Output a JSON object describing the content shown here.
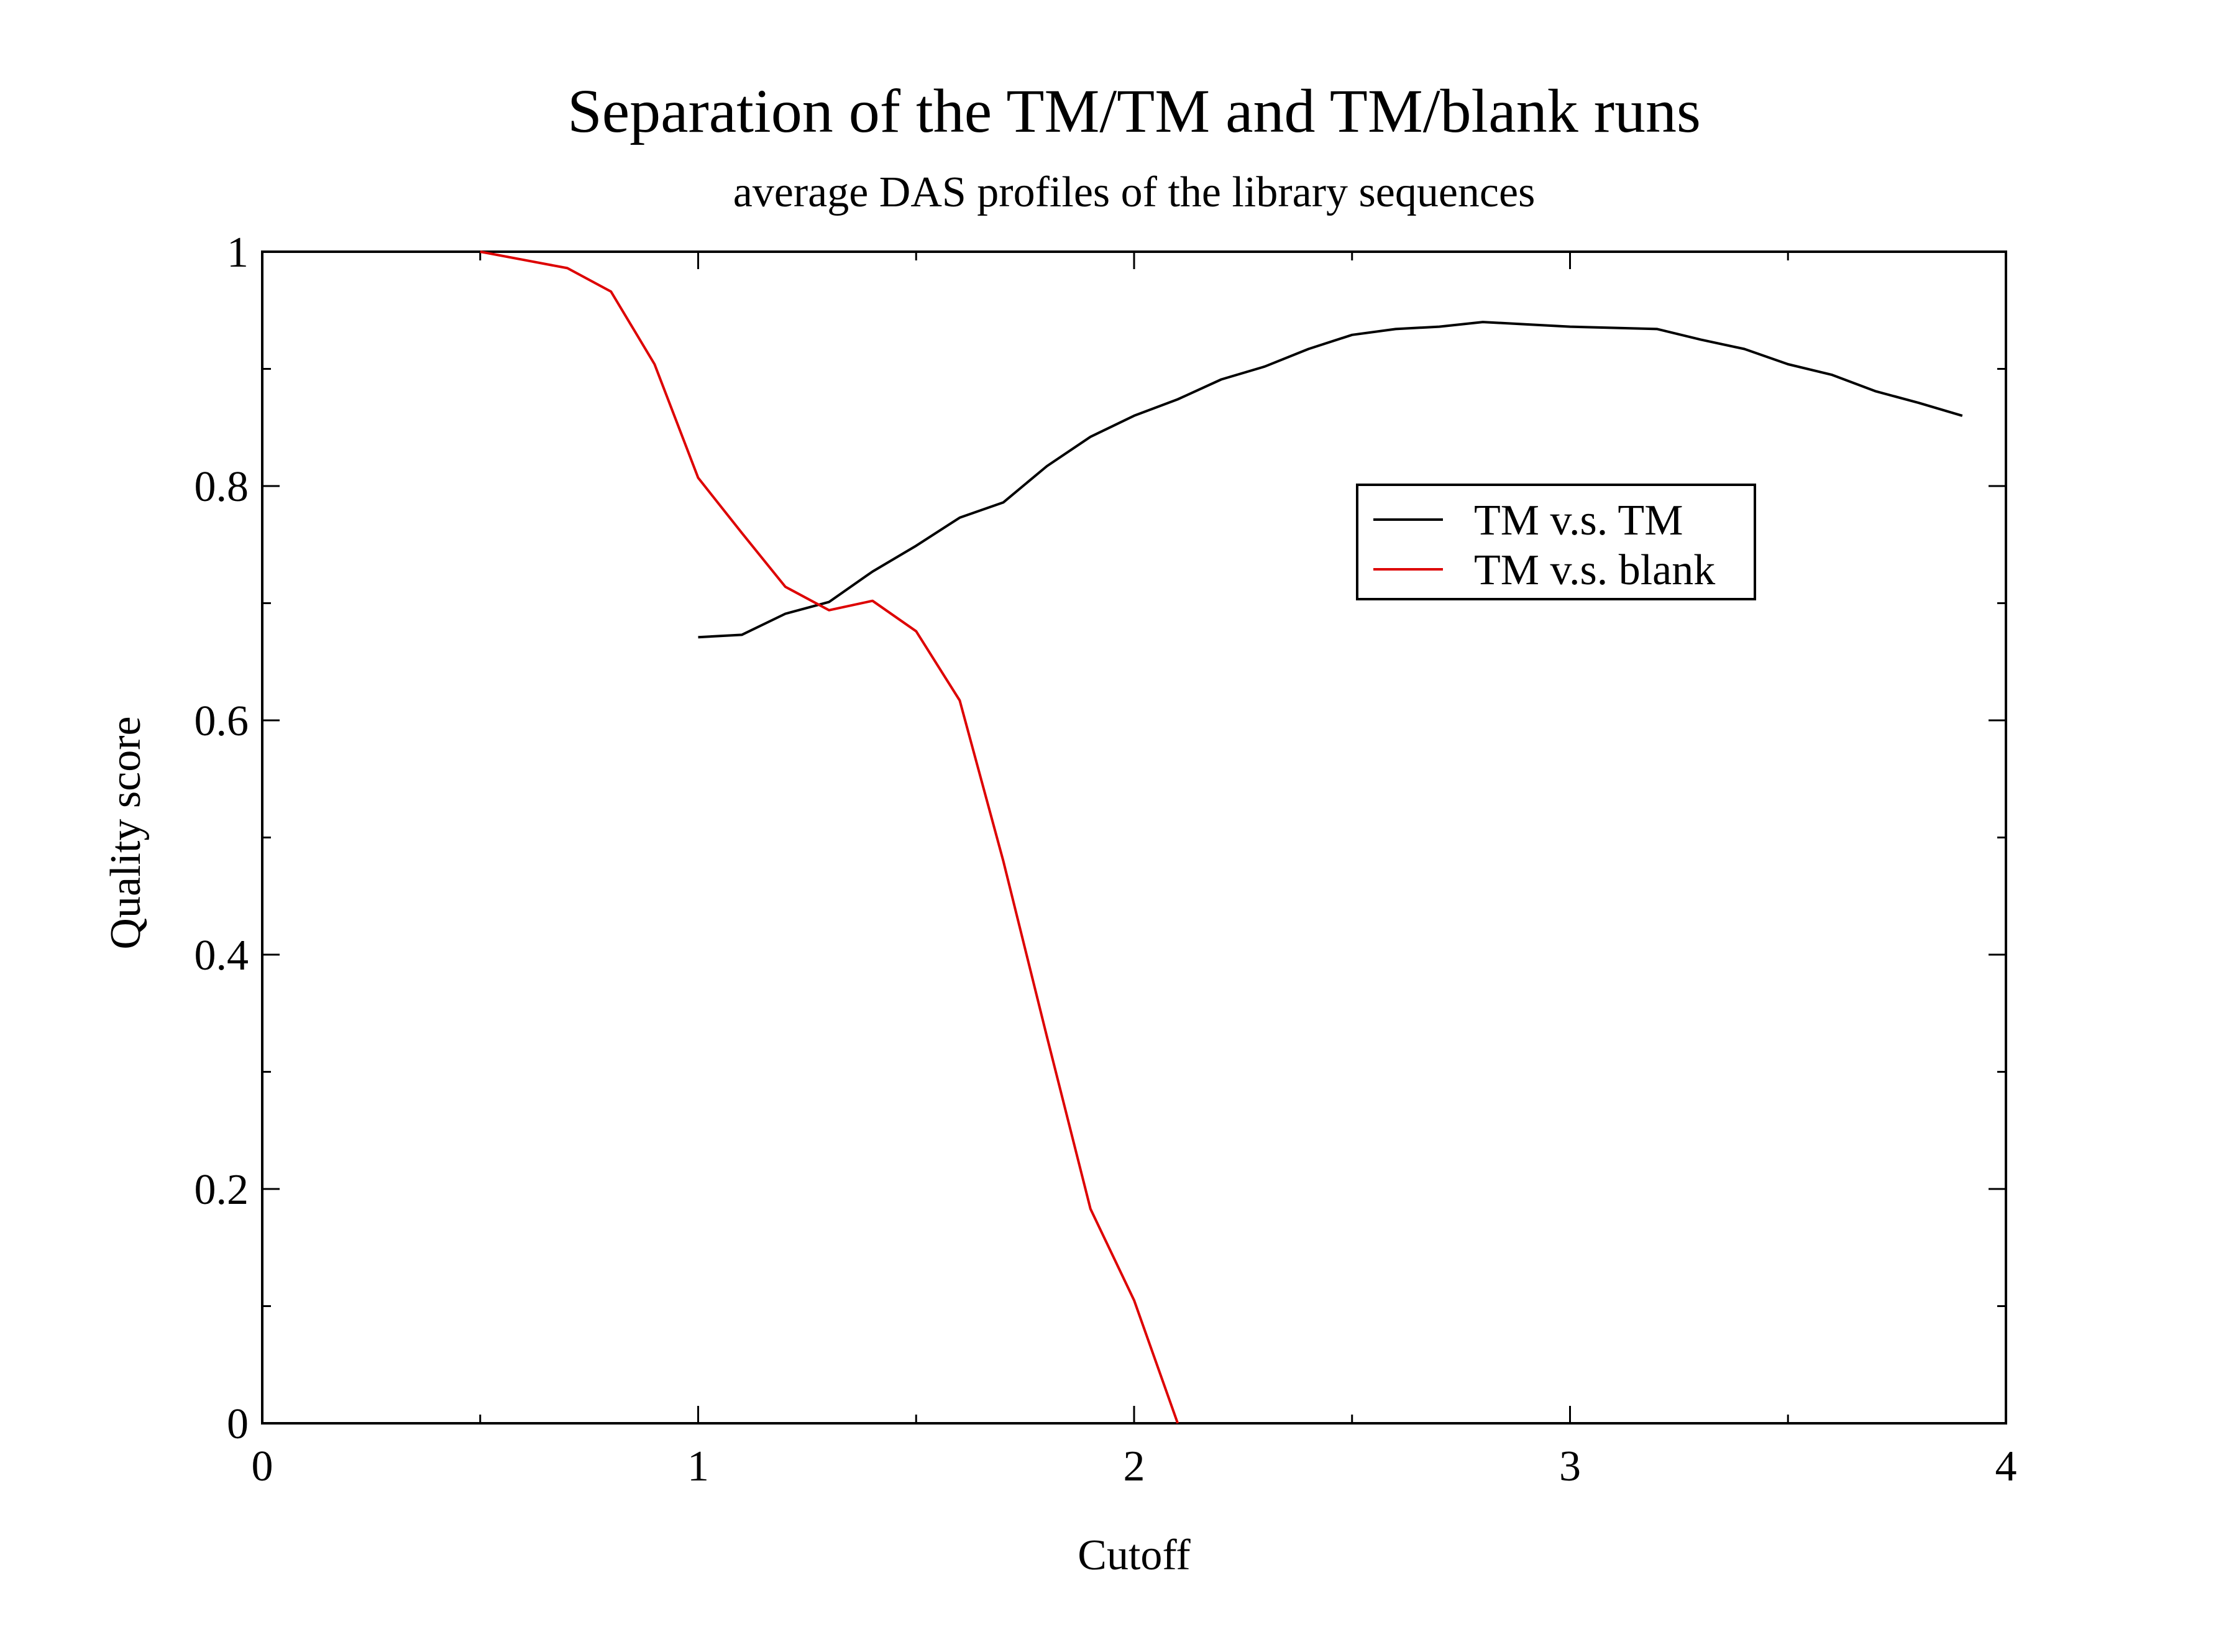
{
  "chart_data": {
    "type": "line",
    "title": "Separation of the TM/TM and TM/blank runs",
    "subtitle": "average DAS profiles of the library sequences",
    "xlabel": "Cutoff",
    "ylabel": "Quality score",
    "xlim": [
      0,
      4
    ],
    "ylim": [
      0,
      1
    ],
    "x_ticks": [
      0,
      1,
      2,
      3,
      4
    ],
    "x_tick_labels": [
      "0",
      "1",
      "2",
      "3",
      "4"
    ],
    "y_ticks": [
      0,
      0.2,
      0.4,
      0.6,
      0.8,
      1
    ],
    "y_tick_labels": [
      "0",
      "0.2",
      "0.4",
      "0.6",
      "0.8",
      "1"
    ],
    "x_minor_step": 0.5,
    "y_minor_step": 0.1,
    "grid": false,
    "legend_position": "upper-right",
    "series": [
      {
        "name": "TM v.s. TM",
        "color": "#000000",
        "x": [
          1.0,
          1.1,
          1.2,
          1.3,
          1.4,
          1.5,
          1.6,
          1.7,
          1.8,
          1.9,
          2.0,
          2.1,
          2.2,
          2.3,
          2.4,
          2.5,
          2.6,
          2.7,
          2.8,
          2.9,
          3.0,
          3.1,
          3.2,
          3.3,
          3.4,
          3.5,
          3.6,
          3.7,
          3.8,
          3.9
        ],
        "y": [
          0.671,
          0.673,
          0.691,
          0.701,
          0.727,
          0.749,
          0.773,
          0.786,
          0.817,
          0.842,
          0.86,
          0.874,
          0.891,
          0.902,
          0.917,
          0.929,
          0.934,
          0.936,
          0.94,
          0.938,
          0.936,
          0.935,
          0.934,
          0.925,
          0.917,
          0.904,
          0.895,
          0.881,
          0.871,
          0.86
        ]
      },
      {
        "name": "TM v.s. blank",
        "color": "#dd0000",
        "x": [
          0.5,
          0.6,
          0.7,
          0.8,
          0.9,
          1.0,
          1.1,
          1.2,
          1.3,
          1.4,
          1.5,
          1.6,
          1.7,
          1.8,
          1.9,
          2.0,
          2.1
        ],
        "y": [
          1.0,
          0.993,
          0.986,
          0.966,
          0.904,
          0.807,
          0.76,
          0.714,
          0.694,
          0.702,
          0.676,
          0.617,
          0.48,
          0.33,
          0.183,
          0.105,
          0.0
        ]
      }
    ]
  }
}
